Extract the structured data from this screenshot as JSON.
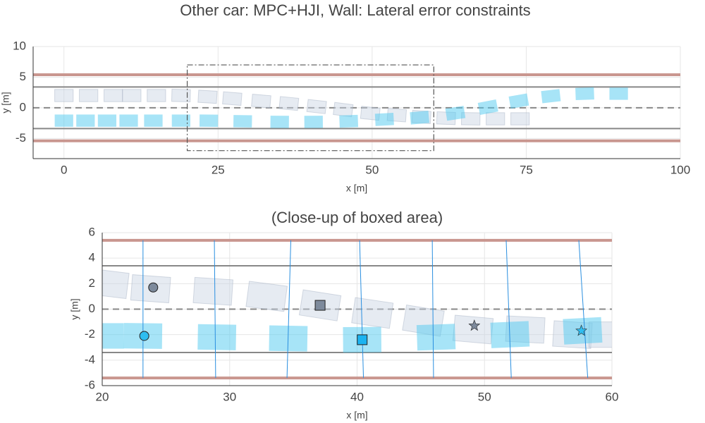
{
  "chart_data": [
    {
      "type": "car-scene",
      "title": "Other car: MPC+HJI, Wall: Lateral error constraints",
      "xlabel": "x [m]",
      "ylabel": "y [m]",
      "xlim": [
        -5,
        100
      ],
      "ylim": [
        -8.3,
        10
      ],
      "xticks": [
        0,
        25,
        50,
        75,
        100
      ],
      "yticks": [
        -5,
        0,
        5,
        10
      ],
      "grid": true,
      "walls": [
        5.4,
        -5.4
      ],
      "wall_color": "#c9968f",
      "lanes": [
        3.4,
        -3.4
      ],
      "lane_color": "#888888",
      "center": 0,
      "box": {
        "x": [
          20,
          60
        ],
        "y": [
          -7,
          7
        ]
      },
      "series": [
        {
          "color": "#c8d3e3",
          "x": [
            0,
            4,
            8,
            11,
            15,
            19,
            23.3,
            27.3,
            32,
            36.5,
            41,
            45.3,
            49.7,
            54,
            58,
            62,
            66,
            70,
            74
          ],
          "y": [
            2,
            2,
            2,
            2,
            2,
            2,
            1.8,
            1.5,
            1.1,
            0.7,
            0.2,
            -0.3,
            -0.9,
            -1.2,
            -1.5,
            -1.7,
            -1.8,
            -1.8,
            -1.8
          ]
        },
        {
          "color": "#4fc9f0",
          "x": [
            0,
            3.5,
            7,
            10.5,
            14.5,
            19,
            23.5,
            29,
            35,
            40.5,
            46.2,
            52,
            57.7,
            63.5,
            68.8,
            73.8,
            79,
            84.5,
            90
          ],
          "y": [
            -2.1,
            -2.1,
            -2.1,
            -2.1,
            -2.1,
            -2.1,
            -2.1,
            -2.2,
            -2.3,
            -2.3,
            -2.2,
            -1.9,
            -1.6,
            -0.9,
            0.1,
            1.1,
            1.9,
            2.3,
            2.3
          ]
        }
      ]
    },
    {
      "type": "car-scene",
      "title": "(Close-up of boxed area)",
      "xlabel": "x [m]",
      "ylabel": "y [m]",
      "xlim": [
        20,
        60
      ],
      "ylim": [
        -6,
        6
      ],
      "xticks": [
        20,
        30,
        40,
        50,
        60
      ],
      "yticks": [
        -6,
        -4,
        -2,
        0,
        2,
        4,
        6
      ],
      "grid": true,
      "walls": [
        5.4,
        -5.4
      ],
      "wall_color": "#c9968f",
      "lanes": [
        3.4,
        -3.4
      ],
      "lane_color": "#888888",
      "center": 0,
      "series": [
        {
          "color": "#c8d3e3",
          "x": [
            20.5,
            23.8,
            28.7,
            32.9,
            37.1,
            41.2,
            45.2,
            49.1,
            53.2,
            56.9,
            59.7
          ],
          "y": [
            2,
            1.6,
            1.4,
            1,
            0.3,
            -0.3,
            -0.9,
            -1.6,
            -1.6,
            -2,
            -2
          ]
        },
        {
          "color": "#4fc9f0",
          "x": [
            20.2,
            23.2,
            29,
            34.6,
            40.4,
            46.2,
            52,
            57.7
          ],
          "y": [
            -2.1,
            -2.1,
            -2.2,
            -2.3,
            -2.4,
            -2.2,
            -2,
            -1.7
          ]
        }
      ],
      "segments": {
        "color": "#2a8fe0",
        "x_top": [
          23.2,
          28.8,
          34.8,
          40.2,
          45.9,
          51.7,
          57.4
        ],
        "x_bottom": [
          23.2,
          28.9,
          34.5,
          40.5,
          46,
          52.1,
          58.1
        ]
      },
      "markers": [
        {
          "shape": "circle",
          "color": "#7d8a9c",
          "x": 24,
          "y": 1.7
        },
        {
          "shape": "circle",
          "color": "#2fbdf0",
          "x": 23.3,
          "y": -2.1
        },
        {
          "shape": "square",
          "color": "#7d8a9c",
          "x": 37.1,
          "y": 0.3
        },
        {
          "shape": "square",
          "color": "#1cb3f0",
          "x": 40.4,
          "y": -2.4
        },
        {
          "shape": "star",
          "color": "#7d8a9c",
          "x": 49.2,
          "y": -1.3
        },
        {
          "shape": "star",
          "color": "#2fbdf0",
          "x": 57.6,
          "y": -1.7
        }
      ]
    }
  ]
}
